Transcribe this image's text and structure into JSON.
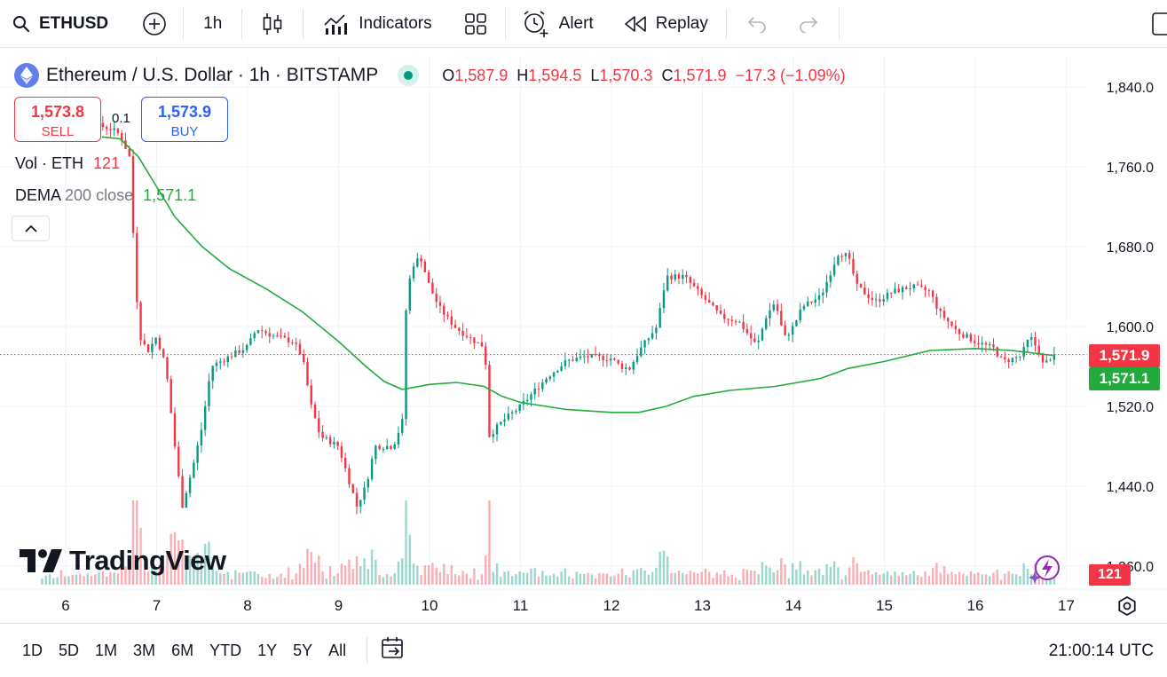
{
  "toolbar": {
    "symbol": "ETHUSD",
    "interval": "1h",
    "indicators_label": "Indicators",
    "alert_label": "Alert",
    "replay_label": "Replay"
  },
  "legend": {
    "title": "Ethereum / U.S. Dollar · 1h · BITSTAMP",
    "open_key": "O",
    "open": "1,587.9",
    "high_key": "H",
    "high": "1,594.5",
    "low_key": "L",
    "low": "1,570.3",
    "close_key": "C",
    "close": "1,571.9",
    "change": "−17.3 (−1.09%)"
  },
  "trade": {
    "sell_price": "1,573.8",
    "sell_label": "SELL",
    "spread": "0.1",
    "buy_price": "1,573.9",
    "buy_label": "BUY"
  },
  "indicators": {
    "vol_label": "Vol · ETH",
    "vol_value": "121",
    "dema_name": "DEMA",
    "dema_params": "200 close",
    "dema_value": "1,571.1"
  },
  "price_tags": {
    "close": "1,571.9",
    "dema": "1,571.1",
    "volume": "121"
  },
  "brand": {
    "name": "TradingView"
  },
  "colors": {
    "up": "#089981",
    "down": "#f23645",
    "dema": "#22ab3c",
    "accent": "#2962ff"
  },
  "bottom": {
    "ranges": [
      "1D",
      "5D",
      "1M",
      "3M",
      "6M",
      "YTD",
      "1Y",
      "5Y",
      "All"
    ],
    "clock": "21:00:14 UTC"
  },
  "chart_data": {
    "type": "candlestick",
    "interval": "1h",
    "y_axis_ticks": [
      "1,840.0",
      "1,760.0",
      "1,680.0",
      "1,600.0",
      "1,520.0",
      "1,440.0",
      "1,360.0"
    ],
    "y_tick_values": [
      1840,
      1760,
      1680,
      1600,
      1520,
      1440,
      1360
    ],
    "x_axis_ticks": [
      "6",
      "7",
      "8",
      "9",
      "10",
      "11",
      "12",
      "13",
      "14",
      "15",
      "16",
      "17"
    ],
    "x_tick_values": [
      6,
      7,
      8,
      9,
      10,
      11,
      12,
      13,
      14,
      15,
      16,
      17
    ],
    "grid": true,
    "last_close": 1571.9,
    "dema_last": 1571.1,
    "price_path": [
      [
        5.7,
        1805
      ],
      [
        5.9,
        1808
      ],
      [
        6.3,
        1803
      ],
      [
        6.5,
        1798
      ],
      [
        6.6,
        1792
      ],
      [
        6.7,
        1770
      ],
      [
        6.72,
        1730
      ],
      [
        6.75,
        1680
      ],
      [
        6.78,
        1630
      ],
      [
        6.82,
        1590
      ],
      [
        6.9,
        1575
      ],
      [
        7.0,
        1590
      ],
      [
        7.1,
        1560
      ],
      [
        7.2,
        1480
      ],
      [
        7.28,
        1420
      ],
      [
        7.4,
        1460
      ],
      [
        7.5,
        1500
      ],
      [
        7.6,
        1560
      ],
      [
        7.8,
        1570
      ],
      [
        7.9,
        1575
      ],
      [
        8.0,
        1580
      ],
      [
        8.1,
        1598
      ],
      [
        8.3,
        1590
      ],
      [
        8.5,
        1585
      ],
      [
        8.6,
        1570
      ],
      [
        8.7,
        1520
      ],
      [
        8.8,
        1490
      ],
      [
        9.0,
        1480
      ],
      [
        9.1,
        1450
      ],
      [
        9.2,
        1420
      ],
      [
        9.3,
        1440
      ],
      [
        9.4,
        1480
      ],
      [
        9.6,
        1480
      ],
      [
        9.7,
        1505
      ],
      [
        9.72,
        1600
      ],
      [
        9.8,
        1660
      ],
      [
        9.9,
        1670
      ],
      [
        10.0,
        1640
      ],
      [
        10.1,
        1620
      ],
      [
        10.2,
        1608
      ],
      [
        10.3,
        1598
      ],
      [
        10.5,
        1585
      ],
      [
        10.6,
        1580
      ],
      [
        10.62,
        1560
      ],
      [
        10.65,
        1490
      ],
      [
        10.8,
        1505
      ],
      [
        11.0,
        1520
      ],
      [
        11.1,
        1530
      ],
      [
        11.3,
        1550
      ],
      [
        11.5,
        1565
      ],
      [
        11.7,
        1570
      ],
      [
        12.0,
        1568
      ],
      [
        12.1,
        1560
      ],
      [
        12.2,
        1558
      ],
      [
        12.3,
        1575
      ],
      [
        12.5,
        1600
      ],
      [
        12.6,
        1650
      ],
      [
        12.8,
        1650
      ],
      [
        13.0,
        1630
      ],
      [
        13.2,
        1610
      ],
      [
        13.4,
        1605
      ],
      [
        13.6,
        1580
      ],
      [
        13.7,
        1610
      ],
      [
        13.8,
        1625
      ],
      [
        13.9,
        1588
      ],
      [
        14.0,
        1600
      ],
      [
        14.1,
        1620
      ],
      [
        14.3,
        1630
      ],
      [
        14.5,
        1675
      ],
      [
        14.6,
        1670
      ],
      [
        14.7,
        1640
      ],
      [
        14.9,
        1625
      ],
      [
        15.1,
        1635
      ],
      [
        15.3,
        1640
      ],
      [
        15.5,
        1635
      ],
      [
        15.6,
        1615
      ],
      [
        15.8,
        1595
      ],
      [
        16.0,
        1585
      ],
      [
        16.2,
        1578
      ],
      [
        16.3,
        1565
      ],
      [
        16.5,
        1570
      ],
      [
        16.6,
        1590
      ],
      [
        16.7,
        1575
      ],
      [
        16.75,
        1560
      ],
      [
        16.85,
        1571.9
      ]
    ],
    "dema_path": [
      [
        6.4,
        1790
      ],
      [
        6.6,
        1788
      ],
      [
        6.8,
        1770
      ],
      [
        7.0,
        1740
      ],
      [
        7.2,
        1710
      ],
      [
        7.5,
        1680
      ],
      [
        7.8,
        1658
      ],
      [
        8.2,
        1638
      ],
      [
        8.6,
        1615
      ],
      [
        9.0,
        1585
      ],
      [
        9.3,
        1560
      ],
      [
        9.5,
        1545
      ],
      [
        9.7,
        1537
      ],
      [
        10.0,
        1542
      ],
      [
        10.3,
        1544
      ],
      [
        10.6,
        1540
      ],
      [
        10.8,
        1530
      ],
      [
        11.0,
        1524
      ],
      [
        11.5,
        1517
      ],
      [
        12.0,
        1514
      ],
      [
        12.3,
        1514
      ],
      [
        12.6,
        1520
      ],
      [
        12.9,
        1530
      ],
      [
        13.3,
        1536
      ],
      [
        13.8,
        1540
      ],
      [
        14.3,
        1548
      ],
      [
        14.6,
        1558
      ],
      [
        15.0,
        1565
      ],
      [
        15.5,
        1576
      ],
      [
        16.0,
        1578
      ],
      [
        16.4,
        1576
      ],
      [
        16.85,
        1571.1
      ]
    ]
  }
}
